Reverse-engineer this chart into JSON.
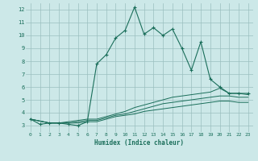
{
  "xlabel": "Humidex (Indice chaleur)",
  "background_color": "#cce8e8",
  "grid_color": "#9bbfbf",
  "line_color": "#1a6e5a",
  "xlim": [
    -0.5,
    23.5
  ],
  "ylim": [
    2.5,
    12.5
  ],
  "yticks": [
    3,
    4,
    5,
    6,
    7,
    8,
    9,
    10,
    11,
    12
  ],
  "xticks": [
    0,
    1,
    2,
    3,
    4,
    5,
    6,
    7,
    8,
    9,
    10,
    11,
    12,
    13,
    14,
    15,
    16,
    17,
    18,
    19,
    20,
    21,
    22,
    23
  ],
  "line1_x": [
    0,
    1,
    2,
    3,
    4,
    5,
    6,
    7,
    8,
    9,
    10,
    11,
    12,
    13,
    14,
    15,
    16,
    17,
    18,
    19,
    20,
    21,
    22,
    23
  ],
  "line1_y": [
    3.5,
    3.1,
    3.2,
    3.2,
    3.1,
    3.0,
    3.3,
    7.8,
    8.5,
    9.8,
    10.4,
    12.2,
    10.1,
    10.6,
    10.0,
    10.5,
    9.0,
    7.3,
    9.5,
    6.6,
    6.0,
    5.5,
    5.5,
    5.5
  ],
  "line2_x": [
    0,
    2,
    3,
    4,
    5,
    6,
    7,
    8,
    9,
    10,
    11,
    12,
    13,
    14,
    15,
    16,
    17,
    18,
    19,
    20,
    21,
    22,
    23
  ],
  "line2_y": [
    3.5,
    3.2,
    3.2,
    3.3,
    3.4,
    3.5,
    3.5,
    3.7,
    3.9,
    4.1,
    4.4,
    4.6,
    4.8,
    5.0,
    5.2,
    5.3,
    5.4,
    5.5,
    5.6,
    5.9,
    5.5,
    5.5,
    5.4
  ],
  "line3_x": [
    0,
    2,
    3,
    4,
    5,
    6,
    7,
    8,
    9,
    10,
    11,
    12,
    13,
    14,
    15,
    16,
    17,
    18,
    19,
    20,
    21,
    22,
    23
  ],
  "line3_y": [
    3.5,
    3.2,
    3.2,
    3.2,
    3.3,
    3.4,
    3.4,
    3.6,
    3.8,
    3.9,
    4.1,
    4.3,
    4.5,
    4.7,
    4.8,
    4.9,
    5.0,
    5.1,
    5.2,
    5.3,
    5.3,
    5.2,
    5.2
  ],
  "line4_x": [
    0,
    2,
    3,
    4,
    5,
    6,
    7,
    8,
    9,
    10,
    11,
    12,
    13,
    14,
    15,
    16,
    17,
    18,
    19,
    20,
    21,
    22,
    23
  ],
  "line4_y": [
    3.5,
    3.2,
    3.2,
    3.2,
    3.2,
    3.3,
    3.3,
    3.5,
    3.7,
    3.8,
    3.9,
    4.1,
    4.2,
    4.3,
    4.4,
    4.5,
    4.6,
    4.7,
    4.8,
    4.9,
    4.9,
    4.8,
    4.8
  ]
}
